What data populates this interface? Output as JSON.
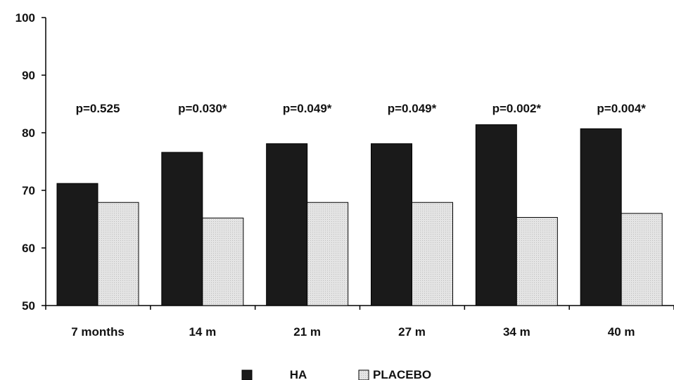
{
  "chart_data": {
    "type": "bar",
    "categories": [
      "7 months",
      "14 m",
      "21 m",
      "27 m",
      "34 m",
      "40 m"
    ],
    "series": [
      {
        "name": "HA",
        "values": [
          71.2,
          76.6,
          78.1,
          78.1,
          81.4,
          80.7
        ],
        "color": "#1a1a1a"
      },
      {
        "name": "PLACEBO",
        "values": [
          67.9,
          65.2,
          67.9,
          67.9,
          65.3,
          66.0
        ],
        "color": "#e2e2e2"
      }
    ],
    "annotations": [
      "p=0.525",
      "p=0.030*",
      "p=0.049*",
      "p=0.049*",
      "p=0.002*",
      "p=0.004*"
    ],
    "yticks": [
      50,
      60,
      70,
      80,
      90,
      100
    ],
    "ylim": [
      50,
      100
    ],
    "title": "",
    "xlabel": "",
    "ylabel": "",
    "grid": false,
    "legend_position": "bottom-center"
  }
}
